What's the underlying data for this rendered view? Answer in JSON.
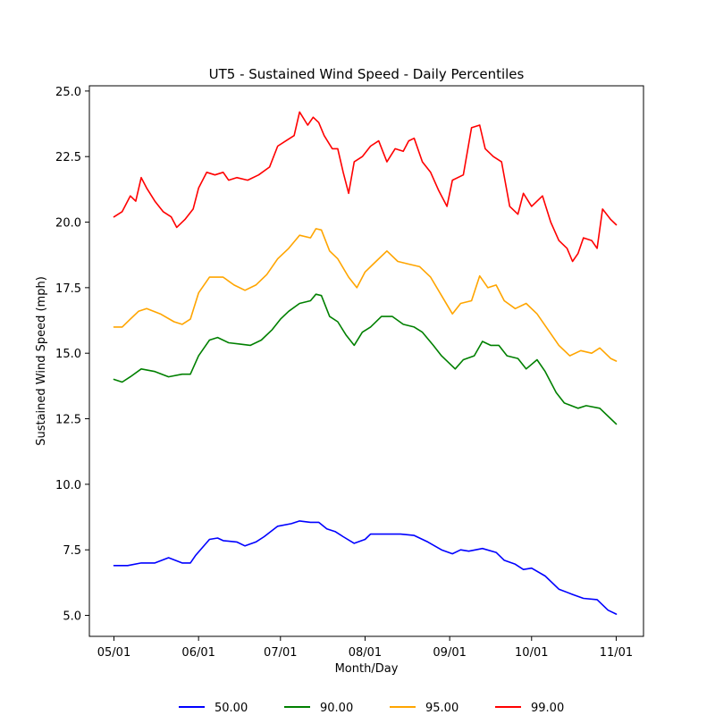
{
  "chart_data": {
    "type": "line",
    "title": "UT5 - Sustained Wind Speed - Daily Percentiles",
    "xlabel": "Month/Day",
    "ylabel": "Sustained Wind Speed (mph)",
    "x_ticks": [
      {
        "label": "05/01",
        "day": 0
      },
      {
        "label": "06/01",
        "day": 31
      },
      {
        "label": "07/01",
        "day": 61
      },
      {
        "label": "08/01",
        "day": 92
      },
      {
        "label": "09/01",
        "day": 123
      },
      {
        "label": "10/01",
        "day": 153
      },
      {
        "label": "11/01",
        "day": 184
      }
    ],
    "xlim": [
      -9,
      194
    ],
    "ylim": [
      4.2,
      25.2
    ],
    "y_ticks": [
      5.0,
      7.5,
      10.0,
      12.5,
      15.0,
      17.5,
      20.0,
      22.5,
      25.0
    ],
    "grid": false,
    "legend_position": "bottom",
    "series": [
      {
        "name": "50.00",
        "color": "#0000ff",
        "points": [
          [
            0,
            6.9
          ],
          [
            5,
            6.9
          ],
          [
            10,
            7.0
          ],
          [
            15,
            7.0
          ],
          [
            20,
            7.2
          ],
          [
            25,
            7.0
          ],
          [
            28,
            7.0
          ],
          [
            30,
            7.3
          ],
          [
            35,
            7.9
          ],
          [
            38,
            7.95
          ],
          [
            40,
            7.85
          ],
          [
            45,
            7.8
          ],
          [
            48,
            7.65
          ],
          [
            52,
            7.8
          ],
          [
            55,
            8.0
          ],
          [
            60,
            8.4
          ],
          [
            65,
            8.5
          ],
          [
            68,
            8.6
          ],
          [
            72,
            8.55
          ],
          [
            75,
            8.55
          ],
          [
            78,
            8.3
          ],
          [
            81,
            8.2
          ],
          [
            84,
            8.0
          ],
          [
            88,
            7.75
          ],
          [
            92,
            7.9
          ],
          [
            94,
            8.1
          ],
          [
            100,
            8.1
          ],
          [
            105,
            8.1
          ],
          [
            110,
            8.05
          ],
          [
            115,
            7.8
          ],
          [
            120,
            7.5
          ],
          [
            124,
            7.35
          ],
          [
            127,
            7.5
          ],
          [
            130,
            7.45
          ],
          [
            135,
            7.55
          ],
          [
            140,
            7.4
          ],
          [
            143,
            7.1
          ],
          [
            147,
            6.95
          ],
          [
            150,
            6.75
          ],
          [
            153,
            6.8
          ],
          [
            158,
            6.5
          ],
          [
            163,
            6.0
          ],
          [
            168,
            5.8
          ],
          [
            172,
            5.65
          ],
          [
            177,
            5.6
          ],
          [
            181,
            5.2
          ],
          [
            184,
            5.05
          ]
        ]
      },
      {
        "name": "90.00",
        "color": "#008000",
        "points": [
          [
            0,
            14.0
          ],
          [
            3,
            13.9
          ],
          [
            6,
            14.1
          ],
          [
            10,
            14.4
          ],
          [
            15,
            14.3
          ],
          [
            20,
            14.1
          ],
          [
            25,
            14.2
          ],
          [
            28,
            14.2
          ],
          [
            31,
            14.9
          ],
          [
            35,
            15.5
          ],
          [
            38,
            15.6
          ],
          [
            42,
            15.4
          ],
          [
            46,
            15.35
          ],
          [
            50,
            15.3
          ],
          [
            54,
            15.5
          ],
          [
            58,
            15.9
          ],
          [
            61,
            16.3
          ],
          [
            64,
            16.6
          ],
          [
            68,
            16.9
          ],
          [
            72,
            17.0
          ],
          [
            74,
            17.25
          ],
          [
            76,
            17.2
          ],
          [
            79,
            16.4
          ],
          [
            82,
            16.2
          ],
          [
            85,
            15.7
          ],
          [
            88,
            15.3
          ],
          [
            91,
            15.8
          ],
          [
            94,
            16.0
          ],
          [
            98,
            16.4
          ],
          [
            102,
            16.4
          ],
          [
            106,
            16.1
          ],
          [
            110,
            16.0
          ],
          [
            113,
            15.8
          ],
          [
            117,
            15.3
          ],
          [
            120,
            14.9
          ],
          [
            125,
            14.4
          ],
          [
            128,
            14.75
          ],
          [
            132,
            14.9
          ],
          [
            135,
            15.45
          ],
          [
            138,
            15.3
          ],
          [
            141,
            15.3
          ],
          [
            144,
            14.9
          ],
          [
            148,
            14.8
          ],
          [
            151,
            14.4
          ],
          [
            155,
            14.75
          ],
          [
            158,
            14.3
          ],
          [
            162,
            13.5
          ],
          [
            165,
            13.1
          ],
          [
            170,
            12.9
          ],
          [
            173,
            13.0
          ],
          [
            178,
            12.9
          ],
          [
            182,
            12.5
          ],
          [
            184,
            12.3
          ]
        ]
      },
      {
        "name": "95.00",
        "color": "#ffa500",
        "points": [
          [
            0,
            16.0
          ],
          [
            3,
            16.0
          ],
          [
            6,
            16.3
          ],
          [
            9,
            16.6
          ],
          [
            12,
            16.7
          ],
          [
            17,
            16.5
          ],
          [
            22,
            16.2
          ],
          [
            25,
            16.1
          ],
          [
            28,
            16.3
          ],
          [
            31,
            17.3
          ],
          [
            35,
            17.9
          ],
          [
            40,
            17.9
          ],
          [
            44,
            17.6
          ],
          [
            48,
            17.4
          ],
          [
            52,
            17.6
          ],
          [
            56,
            18.0
          ],
          [
            60,
            18.6
          ],
          [
            64,
            19.0
          ],
          [
            68,
            19.5
          ],
          [
            72,
            19.4
          ],
          [
            74,
            19.75
          ],
          [
            76,
            19.7
          ],
          [
            79,
            18.9
          ],
          [
            82,
            18.6
          ],
          [
            86,
            17.9
          ],
          [
            89,
            17.5
          ],
          [
            92,
            18.1
          ],
          [
            96,
            18.5
          ],
          [
            100,
            18.9
          ],
          [
            104,
            18.5
          ],
          [
            108,
            18.4
          ],
          [
            112,
            18.3
          ],
          [
            116,
            17.9
          ],
          [
            120,
            17.2
          ],
          [
            124,
            16.5
          ],
          [
            127,
            16.9
          ],
          [
            131,
            17.0
          ],
          [
            134,
            17.95
          ],
          [
            137,
            17.5
          ],
          [
            140,
            17.6
          ],
          [
            143,
            17.0
          ],
          [
            147,
            16.7
          ],
          [
            151,
            16.9
          ],
          [
            155,
            16.5
          ],
          [
            159,
            15.9
          ],
          [
            163,
            15.3
          ],
          [
            167,
            14.9
          ],
          [
            171,
            15.1
          ],
          [
            175,
            15.0
          ],
          [
            178,
            15.2
          ],
          [
            182,
            14.8
          ],
          [
            184,
            14.7
          ]
        ]
      },
      {
        "name": "99.00",
        "color": "#ff0000",
        "points": [
          [
            0,
            20.2
          ],
          [
            3,
            20.4
          ],
          [
            6,
            21.0
          ],
          [
            8,
            20.8
          ],
          [
            10,
            21.7
          ],
          [
            12,
            21.3
          ],
          [
            15,
            20.8
          ],
          [
            18,
            20.4
          ],
          [
            21,
            20.2
          ],
          [
            23,
            19.8
          ],
          [
            26,
            20.1
          ],
          [
            29,
            20.5
          ],
          [
            31,
            21.3
          ],
          [
            34,
            21.9
          ],
          [
            37,
            21.8
          ],
          [
            40,
            21.9
          ],
          [
            42,
            21.6
          ],
          [
            45,
            21.7
          ],
          [
            49,
            21.6
          ],
          [
            53,
            21.8
          ],
          [
            57,
            22.1
          ],
          [
            60,
            22.9
          ],
          [
            63,
            23.1
          ],
          [
            66,
            23.3
          ],
          [
            68,
            24.2
          ],
          [
            71,
            23.7
          ],
          [
            73,
            24.0
          ],
          [
            75,
            23.8
          ],
          [
            77,
            23.3
          ],
          [
            80,
            22.8
          ],
          [
            82,
            22.8
          ],
          [
            84,
            21.9
          ],
          [
            86,
            21.1
          ],
          [
            88,
            22.3
          ],
          [
            91,
            22.5
          ],
          [
            94,
            22.9
          ],
          [
            97,
            23.1
          ],
          [
            100,
            22.3
          ],
          [
            103,
            22.8
          ],
          [
            106,
            22.7
          ],
          [
            108,
            23.1
          ],
          [
            110,
            23.2
          ],
          [
            113,
            22.3
          ],
          [
            116,
            21.9
          ],
          [
            119,
            21.2
          ],
          [
            122,
            20.6
          ],
          [
            124,
            21.6
          ],
          [
            128,
            21.8
          ],
          [
            131,
            23.6
          ],
          [
            134,
            23.7
          ],
          [
            136,
            22.8
          ],
          [
            139,
            22.5
          ],
          [
            142,
            22.3
          ],
          [
            145,
            20.6
          ],
          [
            148,
            20.3
          ],
          [
            150,
            21.1
          ],
          [
            153,
            20.6
          ],
          [
            157,
            21.0
          ],
          [
            160,
            20.0
          ],
          [
            163,
            19.3
          ],
          [
            166,
            19.0
          ],
          [
            168,
            18.5
          ],
          [
            170,
            18.8
          ],
          [
            172,
            19.4
          ],
          [
            175,
            19.3
          ],
          [
            177,
            19.0
          ],
          [
            179,
            20.5
          ],
          [
            182,
            20.1
          ],
          [
            184,
            19.9
          ]
        ]
      }
    ]
  }
}
